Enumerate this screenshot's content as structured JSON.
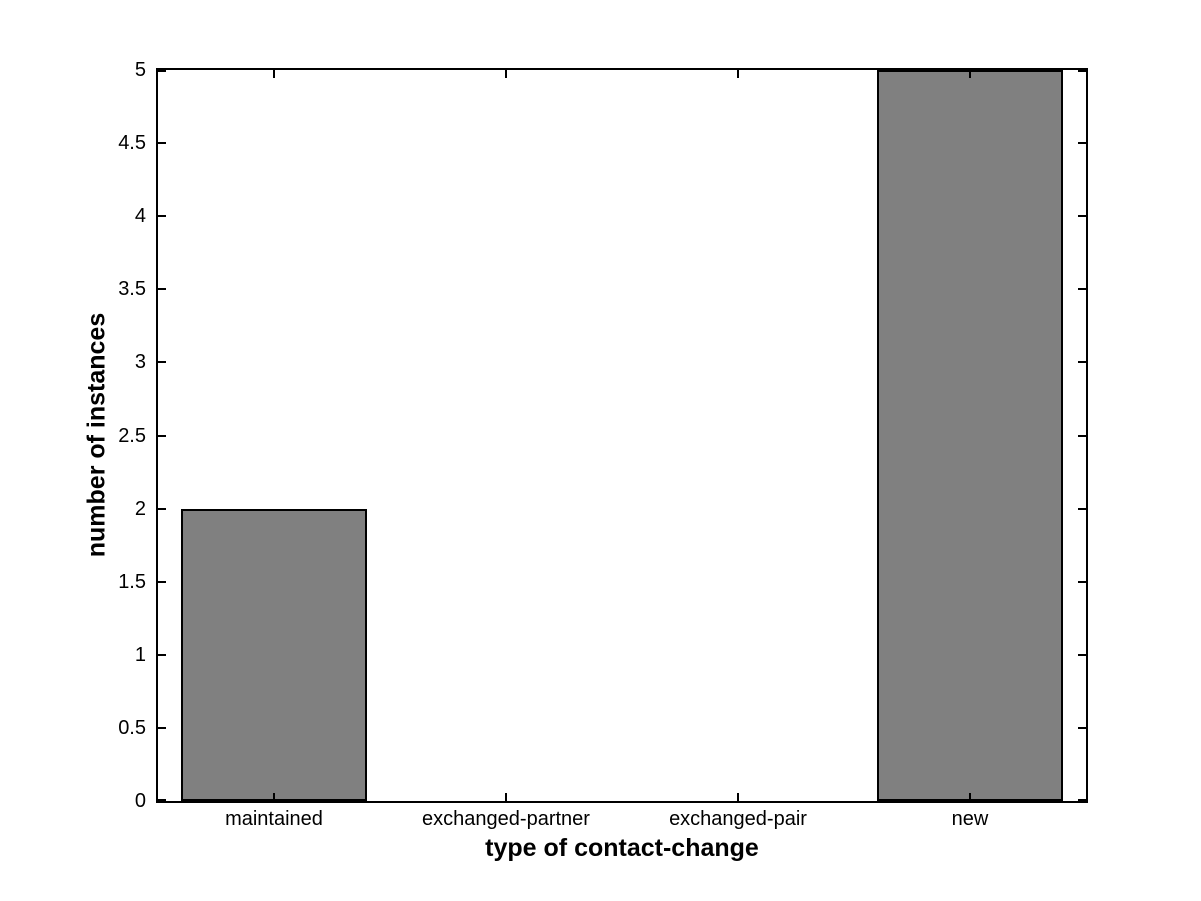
{
  "figure": {
    "background_color": "#ffffff",
    "axis_color": "#000000",
    "text_color": "#000000"
  },
  "chart_data": {
    "type": "bar",
    "categories": [
      "maintained",
      "exchanged-partner",
      "exchanged-pair",
      "new"
    ],
    "values": [
      2,
      0,
      0,
      5
    ],
    "xlabel": "type of contact-change",
    "ylabel": "number of instances",
    "ylim": [
      0,
      5
    ],
    "ytick_values": [
      0,
      0.5,
      1,
      1.5,
      2,
      2.5,
      3,
      3.5,
      4,
      4.5,
      5
    ],
    "ytick_labels": [
      "0",
      "0.5",
      "1",
      "1.5",
      "2",
      "2.5",
      "3",
      "3.5",
      "4",
      "4.5",
      "5"
    ],
    "bar_width_fraction": 0.8,
    "bar_color": "#808080",
    "bar_edge_color": "#000000",
    "grid": false,
    "legend_position": "none",
    "box": true,
    "tick_direction": "in"
  }
}
